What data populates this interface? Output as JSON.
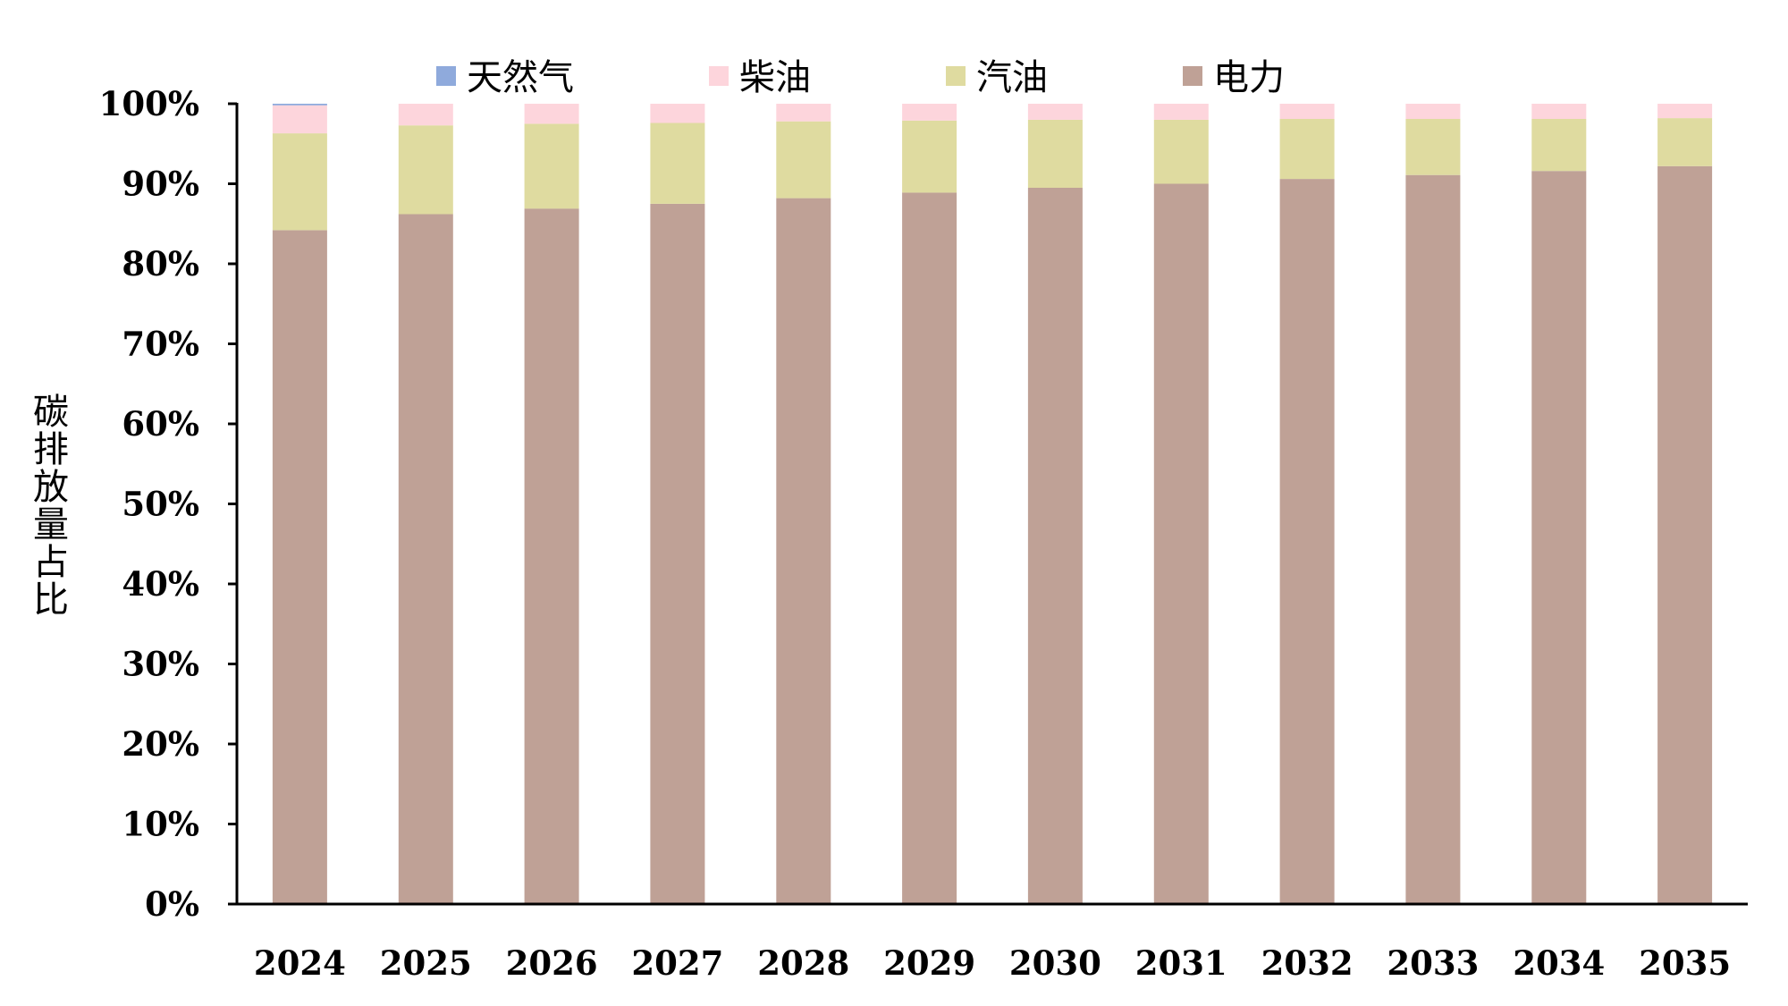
{
  "chart_data": {
    "type": "bar",
    "stacked": true,
    "categories": [
      "2024",
      "2025",
      "2026",
      "2027",
      "2028",
      "2029",
      "2030",
      "2031",
      "2032",
      "2033",
      "2034",
      "2035"
    ],
    "series": [
      {
        "name": "电力",
        "color": "#bfa196",
        "values": [
          84.2,
          86.2,
          86.9,
          87.5,
          88.2,
          88.9,
          89.5,
          90.0,
          90.6,
          91.1,
          91.6,
          92.2
        ]
      },
      {
        "name": "汽油",
        "color": "#dfdba0",
        "values": [
          12.1,
          11.1,
          10.6,
          10.1,
          9.6,
          9.0,
          8.5,
          8.0,
          7.5,
          7.0,
          6.5,
          6.0
        ]
      },
      {
        "name": "柴油",
        "color": "#fdd5dc",
        "values": [
          3.5,
          2.7,
          2.5,
          2.4,
          2.2,
          2.1,
          2.0,
          2.0,
          1.9,
          1.9,
          1.9,
          1.8
        ]
      },
      {
        "name": "天然气",
        "color": "#8faadc",
        "values": [
          0.2,
          0.0,
          0.0,
          0.0,
          0.0,
          0.0,
          0.0,
          0.0,
          0.0,
          0.0,
          0.0,
          0.0
        ]
      }
    ],
    "legend_order": [
      "天然气",
      "柴油",
      "汽油",
      "电力"
    ],
    "legend_position": "top",
    "ylabel": "碳排放量占比",
    "xlabel": "",
    "title": "",
    "ylim": [
      0,
      100
    ],
    "yticks": [
      "0%",
      "10%",
      "20%",
      "30%",
      "40%",
      "50%",
      "60%",
      "70%",
      "80%",
      "90%",
      "100%"
    ],
    "grid": false
  }
}
